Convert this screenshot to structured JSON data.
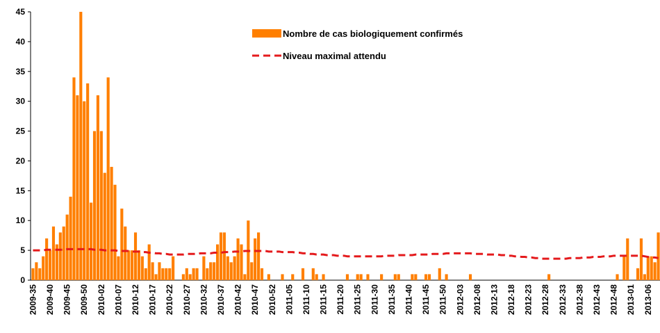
{
  "chart_data": {
    "type": "bar",
    "categories": [
      "2009-35",
      null,
      null,
      null,
      null,
      "2009-40",
      null,
      null,
      null,
      null,
      "2009-45",
      null,
      null,
      null,
      null,
      "2009-50",
      null,
      null,
      null,
      null,
      "2010-02",
      null,
      null,
      null,
      null,
      "2010-07",
      null,
      null,
      null,
      null,
      "2010-12",
      null,
      null,
      null,
      null,
      "2010-17",
      null,
      null,
      null,
      null,
      "2010-22",
      null,
      null,
      null,
      null,
      "2010-27",
      null,
      null,
      null,
      null,
      "2010-32",
      null,
      null,
      null,
      null,
      "2010-37",
      null,
      null,
      null,
      null,
      "2010-42",
      null,
      null,
      null,
      null,
      "2010-47",
      null,
      null,
      null,
      null,
      "2010-52",
      null,
      null,
      null,
      null,
      "2011-05",
      null,
      null,
      null,
      null,
      "2011-10",
      null,
      null,
      null,
      null,
      "2011-15",
      null,
      null,
      null,
      null,
      "2011-20",
      null,
      null,
      null,
      null,
      "2011-25",
      null,
      null,
      null,
      null,
      "2011-30",
      null,
      null,
      null,
      null,
      "2011-35",
      null,
      null,
      null,
      null,
      "2011-40",
      null,
      null,
      null,
      null,
      "2011-45",
      null,
      null,
      null,
      null,
      "2011-50",
      null,
      null,
      null,
      null,
      "2012-03",
      null,
      null,
      null,
      null,
      "2012-08",
      null,
      null,
      null,
      null,
      "2012-13",
      null,
      null,
      null,
      null,
      "2012-18",
      null,
      null,
      null,
      null,
      "2012-23",
      null,
      null,
      null,
      null,
      "2012-28",
      null,
      null,
      null,
      null,
      "2012-33",
      null,
      null,
      null,
      null,
      "2012-38",
      null,
      null,
      null,
      null,
      "2012-43",
      null,
      null,
      null,
      null,
      "2012-48",
      null,
      null,
      null,
      null,
      "2013-01",
      null,
      null,
      null,
      null,
      "2013-06",
      null,
      null,
      null
    ],
    "series": [
      {
        "name": "Nombre de cas biologiquement confirmés",
        "type": "bar",
        "color": "#ff7f00",
        "values": [
          2,
          3,
          2,
          4,
          7,
          5,
          9,
          6,
          8,
          9,
          11,
          14,
          34,
          31,
          45,
          30,
          33,
          13,
          25,
          31,
          25,
          18,
          34,
          19,
          16,
          4,
          12,
          9,
          5,
          5,
          8,
          5,
          4,
          2,
          6,
          3,
          1,
          3,
          2,
          2,
          2,
          4,
          0,
          0,
          1,
          2,
          1,
          2,
          2,
          0,
          4,
          2,
          3,
          3,
          6,
          8,
          8,
          4,
          3,
          4,
          7,
          6,
          1,
          10,
          3,
          7,
          8,
          2,
          0,
          1,
          0,
          0,
          0,
          1,
          0,
          0,
          1,
          0,
          0,
          2,
          0,
          0,
          2,
          1,
          0,
          1,
          0,
          0,
          0,
          0,
          0,
          0,
          1,
          0,
          0,
          1,
          1,
          0,
          1,
          0,
          0,
          0,
          1,
          0,
          0,
          0,
          1,
          1,
          0,
          0,
          0,
          1,
          1,
          0,
          0,
          1,
          1,
          0,
          0,
          2,
          0,
          1,
          0,
          0,
          0,
          0,
          0,
          0,
          1,
          0,
          0,
          0,
          0,
          0,
          0,
          0,
          0,
          0,
          0,
          0,
          0,
          0,
          0,
          0,
          0,
          0,
          0,
          0,
          0,
          0,
          0,
          1,
          0,
          0,
          0,
          0,
          0,
          0,
          0,
          0,
          0,
          0,
          0,
          0,
          0,
          0,
          0,
          0,
          0,
          0,
          0,
          1,
          0,
          4,
          7,
          0,
          0,
          2,
          7,
          1,
          4,
          4,
          3,
          8
        ]
      },
      {
        "name": "Niveau maximal attendu",
        "type": "line",
        "color": "#e41a1c",
        "dashed": true,
        "values": [
          5.0,
          5.0,
          5.0,
          5.0,
          5.1,
          5.1,
          5.1,
          5.1,
          5.1,
          5.1,
          5.2,
          5.2,
          5.2,
          5.2,
          5.2,
          5.2,
          5.2,
          5.2,
          5.1,
          5.1,
          5.1,
          5.0,
          5.0,
          5.0,
          5.0,
          4.9,
          4.9,
          4.9,
          4.9,
          4.8,
          4.8,
          4.8,
          4.7,
          4.7,
          4.6,
          4.6,
          4.5,
          4.5,
          4.4,
          4.4,
          4.3,
          4.3,
          4.3,
          4.3,
          4.3,
          4.4,
          4.4,
          4.4,
          4.4,
          4.5,
          4.5,
          4.5,
          4.5,
          4.6,
          4.6,
          4.6,
          4.7,
          4.7,
          4.7,
          4.8,
          4.8,
          4.8,
          4.9,
          4.9,
          4.9,
          4.9,
          4.9,
          4.9,
          4.9,
          4.8,
          4.8,
          4.8,
          4.8,
          4.7,
          4.7,
          4.7,
          4.7,
          4.6,
          4.6,
          4.5,
          4.5,
          4.4,
          4.4,
          4.3,
          4.3,
          4.3,
          4.2,
          4.2,
          4.2,
          4.1,
          4.1,
          4.1,
          4.0,
          4.0,
          4.0,
          4.0,
          4.0,
          4.0,
          4.0,
          4.0,
          4.0,
          4.0,
          4.0,
          4.1,
          4.1,
          4.1,
          4.1,
          4.2,
          4.2,
          4.2,
          4.2,
          4.2,
          4.3,
          4.3,
          4.3,
          4.3,
          4.3,
          4.4,
          4.4,
          4.4,
          4.4,
          4.5,
          4.5,
          4.5,
          4.5,
          4.5,
          4.5,
          4.5,
          4.5,
          4.4,
          4.4,
          4.4,
          4.4,
          4.3,
          4.3,
          4.3,
          4.3,
          4.2,
          4.2,
          4.1,
          4.1,
          4.0,
          4.0,
          3.9,
          3.9,
          3.8,
          3.8,
          3.7,
          3.7,
          3.6,
          3.6,
          3.6,
          3.6,
          3.6,
          3.6,
          3.6,
          3.6,
          3.7,
          3.7,
          3.7,
          3.7,
          3.8,
          3.8,
          3.8,
          3.9,
          3.9,
          3.9,
          4.0,
          4.0,
          4.0,
          4.1,
          4.1,
          4.1,
          4.1,
          4.1,
          4.1,
          4.1,
          4.1,
          4.1,
          4.0,
          3.9,
          3.8,
          3.8,
          3.7
        ]
      }
    ],
    "ylim": [
      0,
      45
    ],
    "yticks": [
      0,
      5,
      10,
      15,
      20,
      25,
      30,
      35,
      40,
      45
    ],
    "grid": false,
    "legend": "top"
  }
}
